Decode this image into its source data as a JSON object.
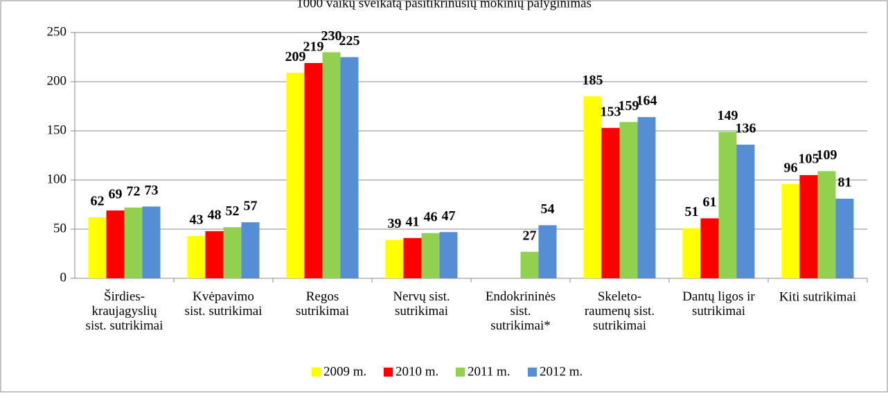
{
  "chart_data": {
    "type": "bar",
    "title": "1000 vaikų sveikatą pasitikrinusių mokinių palyginimas",
    "categories": [
      "Širdies-\nkraujagyslių\nsist. sutrikimai",
      "Kvėpavimo\nsist. sutrikimai",
      "Regos\nsutrikimai",
      "Nervų sist.\nsutrikimai",
      "Endokrininės\nsist.\nsutrikimai*",
      "Skeleto-\nraumenų sist.\nsutrikimai",
      "Dantų ligos ir\nsutrikimai",
      "Kiti sutrikimai"
    ],
    "series": [
      {
        "name": "2009 m.",
        "color": "#ffff00",
        "values": [
          62,
          43,
          209,
          39,
          null,
          185,
          51,
          96
        ]
      },
      {
        "name": "2010 m.",
        "color": "#ff0000",
        "values": [
          69,
          48,
          219,
          41,
          null,
          153,
          61,
          105
        ]
      },
      {
        "name": "2011 m.",
        "color": "#92d050",
        "values": [
          72,
          52,
          230,
          46,
          27,
          159,
          149,
          109
        ]
      },
      {
        "name": "2012 m.",
        "color": "#558ed5",
        "values": [
          73,
          57,
          225,
          47,
          54,
          164,
          136,
          81
        ]
      }
    ],
    "ylim": [
      0,
      250
    ],
    "yticks": [
      0,
      50,
      100,
      150,
      200,
      250
    ],
    "grid": true,
    "legend": "bottom"
  }
}
